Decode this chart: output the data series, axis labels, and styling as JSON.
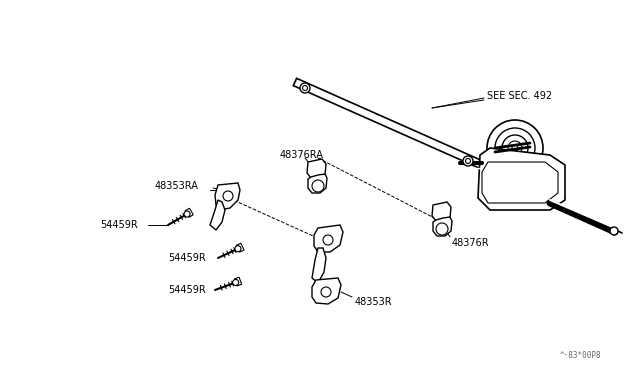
{
  "bg_color": "#ffffff",
  "line_color": "#000000",
  "text_color": "#000000",
  "watermark": "^·83*00P8",
  "labels": {
    "see_sec": "SEE SEC. 492",
    "p48376RA": "48376RA",
    "p48353RA": "48353RA",
    "p54459R_1": "54459R",
    "p54459R_2": "54459R",
    "p54459R_3": "54459R",
    "p48376R": "48376R",
    "p48353R": "48353R"
  },
  "figsize": [
    6.4,
    3.72
  ],
  "dpi": 100
}
